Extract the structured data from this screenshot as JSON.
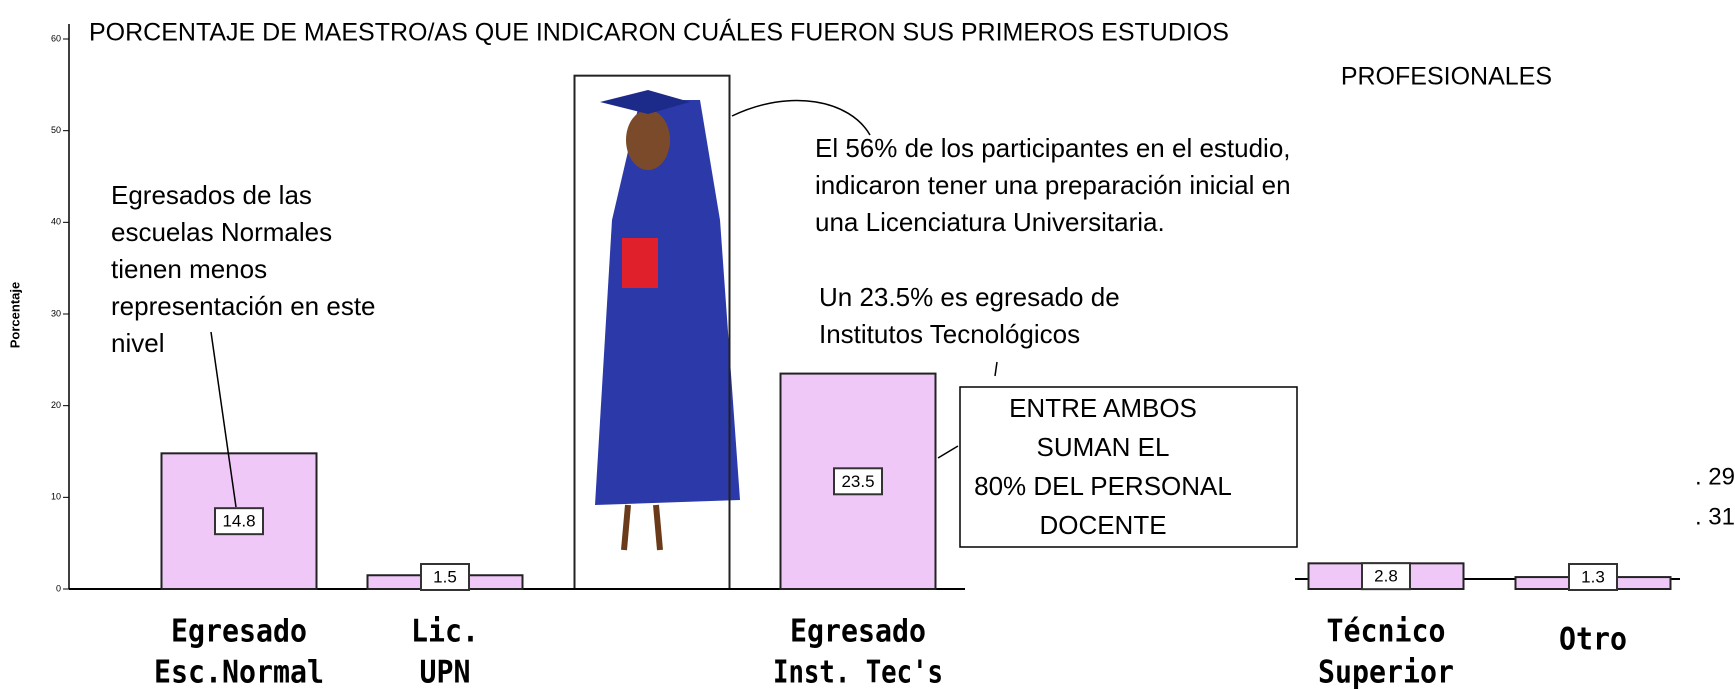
{
  "chart_data": {
    "type": "bar",
    "title_lines": [
      "PORCENTAJE DE MAESTRO/AS QUE INDICARON CUÁLES FUERON SUS PRIMEROS ESTUDIOS",
      "PROFESIONALES"
    ],
    "y_label": "Porcentaje",
    "categories": [
      [
        "Egresado",
        "Esc.Normal"
      ],
      [
        "Lic.",
        "UPN"
      ],
      null,
      [
        "Egresado",
        "Inst. Tec's"
      ],
      [
        "Técnico",
        "Superior"
      ],
      [
        "Otro"
      ]
    ],
    "values": [
      14.8,
      1.5,
      56,
      23.5,
      2.8,
      1.3
    ],
    "value_labels": [
      "14.8",
      "1.5",
      null,
      "23.5",
      "2.8",
      "1.3"
    ],
    "color": "#f0c8f8",
    "ylim": [
      0,
      60
    ],
    "yticks": [
      0,
      10,
      20,
      30,
      40,
      50,
      60
    ],
    "annotations": [
      [
        "Egresados de las",
        "escuelas Normales",
        "tienen menos",
        "representación en este",
        "nivel"
      ],
      [
        "El 56% de los participantes en el estudio,",
        "indicaron tener una preparación inicial en",
        "una Licenciatura Universitaria."
      ],
      [
        "Un 23.5% es egresado de",
        "Institutos Tecnológicos"
      ],
      [
        "ENTRE AMBOS",
        "SUMAN EL",
        "80% DEL PERSONAL",
        "DOCENTE"
      ]
    ],
    "side_text": [
      ". 29",
      ". 31"
    ]
  }
}
